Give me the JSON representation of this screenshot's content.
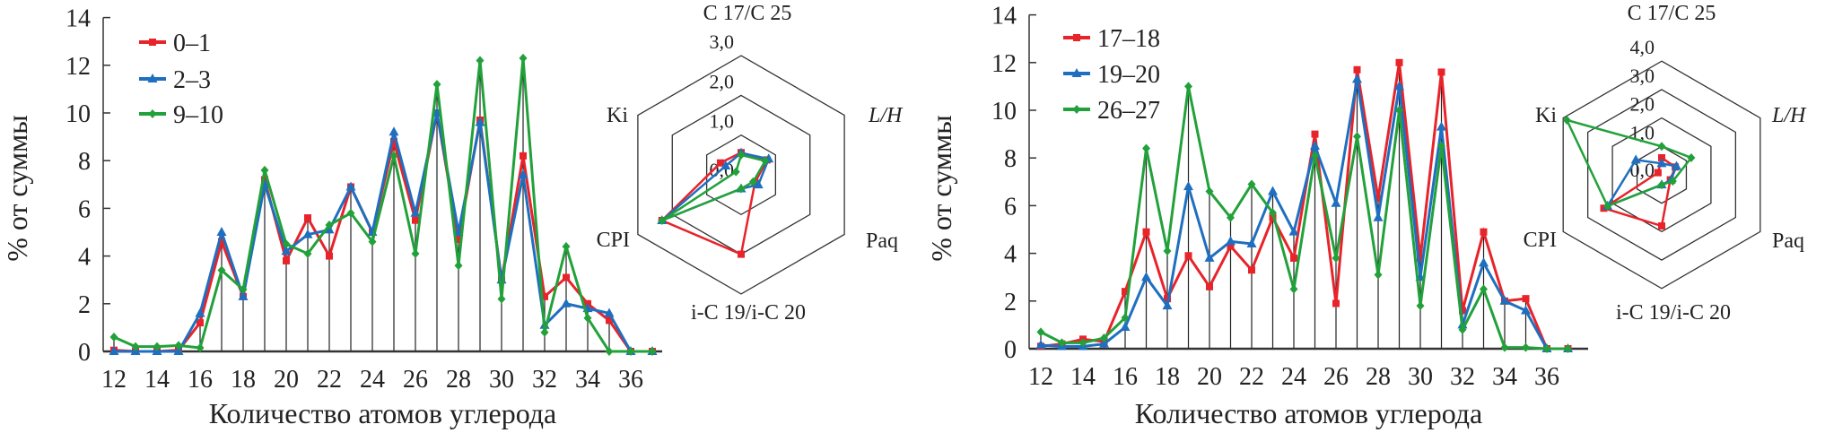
{
  "chart_data": [
    {
      "type": "line",
      "xlabel": "Количество атомов углерода",
      "ylabel": "% от суммы",
      "ylim": [
        0,
        14
      ],
      "yticks": [
        0,
        2,
        4,
        6,
        8,
        10,
        12,
        14
      ],
      "xticks": [
        12,
        14,
        16,
        18,
        20,
        22,
        24,
        26,
        28,
        30,
        32,
        34,
        36
      ],
      "x": [
        12,
        13,
        14,
        15,
        16,
        17,
        18,
        19,
        20,
        21,
        22,
        23,
        24,
        25,
        26,
        27,
        28,
        29,
        30,
        31,
        32,
        33,
        34,
        35,
        36,
        37
      ],
      "legend": "top-left",
      "series": [
        {
          "name": "0–1",
          "color": "#e8232a",
          "marker": "square",
          "values": [
            0.05,
            0,
            0,
            0.05,
            1.2,
            4.6,
            2.3,
            7.2,
            3.8,
            5.6,
            4.0,
            6.9,
            5.0,
            8.8,
            5.5,
            10.0,
            4.7,
            9.7,
            3.0,
            8.2,
            2.3,
            3.1,
            2.0,
            1.3,
            0,
            0
          ]
        },
        {
          "name": "2–3",
          "color": "#1f6fc0",
          "marker": "triangle",
          "values": [
            0,
            0,
            0,
            0,
            1.6,
            5.0,
            2.3,
            7.0,
            4.2,
            4.9,
            5.1,
            6.9,
            5.0,
            9.2,
            5.8,
            10.0,
            5.0,
            9.6,
            3.0,
            7.4,
            1.1,
            2.0,
            1.8,
            1.6,
            0,
            0
          ]
        },
        {
          "name": "9–10",
          "color": "#22a13a",
          "marker": "diamond",
          "values": [
            0.6,
            0.2,
            0.2,
            0.25,
            0.15,
            3.4,
            2.6,
            7.6,
            4.5,
            4.1,
            5.3,
            5.8,
            4.6,
            8.2,
            4.1,
            11.2,
            3.6,
            12.2,
            2.2,
            12.3,
            0.8,
            4.4,
            1.4,
            0,
            0,
            0
          ]
        }
      ],
      "radar": {
        "axes": [
          "C 17/C 25",
          "L/H",
          "Paq",
          "i-C 19/i-C 20",
          "CPI",
          "Ki"
        ],
        "rings": [
          "0,0",
          "1,0",
          "2,0",
          "3,0"
        ],
        "max": 3,
        "series": [
          {
            "name": "0–1",
            "values": [
              0.56,
              0.75,
              0.4,
              2.0,
              2.3,
              0.6
            ]
          },
          {
            "name": "2–3",
            "values": [
              0.55,
              0.8,
              0.5,
              0.35,
              2.3,
              0.45
            ]
          },
          {
            "name": "9–10",
            "values": [
              0.5,
              0.7,
              0.35,
              0.35,
              2.3,
              0.15
            ]
          }
        ]
      }
    },
    {
      "type": "line",
      "xlabel": "Количество атомов углерода",
      "ylabel": "% от суммы",
      "ylim": [
        0,
        14
      ],
      "yticks": [
        0,
        2,
        4,
        6,
        8,
        10,
        12,
        14
      ],
      "xticks": [
        12,
        14,
        16,
        18,
        20,
        22,
        24,
        26,
        28,
        30,
        32,
        34,
        36
      ],
      "x": [
        12,
        13,
        14,
        15,
        16,
        17,
        18,
        19,
        20,
        21,
        22,
        23,
        24,
        25,
        26,
        27,
        28,
        29,
        30,
        31,
        32,
        33,
        34,
        35,
        36,
        37
      ],
      "legend": "top-left",
      "series": [
        {
          "name": "17–18",
          "color": "#e8232a",
          "marker": "square",
          "values": [
            0.1,
            0.2,
            0.4,
            0.3,
            2.4,
            4.9,
            2.1,
            3.9,
            2.6,
            4.3,
            3.3,
            5.5,
            3.8,
            9.0,
            1.9,
            11.7,
            6.3,
            12.0,
            3.8,
            11.6,
            1.6,
            4.9,
            2.0,
            2.1,
            0,
            0
          ]
        },
        {
          "name": "19–20",
          "color": "#1f6fc0",
          "marker": "triangle",
          "values": [
            0.15,
            0.1,
            0.1,
            0.2,
            0.9,
            3.0,
            1.8,
            6.8,
            3.8,
            4.5,
            4.4,
            6.6,
            4.9,
            8.5,
            6.1,
            11.3,
            5.5,
            11.0,
            3.0,
            9.3,
            1.0,
            3.6,
            2.0,
            1.6,
            0,
            0
          ]
        },
        {
          "name": "26–27",
          "color": "#22a13a",
          "marker": "diamond",
          "values": [
            0.7,
            0.25,
            0.25,
            0.45,
            1.3,
            8.4,
            4.1,
            11.0,
            6.6,
            5.5,
            6.9,
            5.7,
            2.5,
            8.1,
            3.8,
            8.9,
            3.1,
            10.0,
            1.8,
            8.5,
            0.8,
            2.5,
            0.05,
            0.05,
            0,
            0
          ]
        }
      ],
      "radar": {
        "axes": [
          "C 17/C 25",
          "L/H",
          "Paq",
          "i-C 19/i-C 20",
          "CPI",
          "Ki"
        ],
        "rings": [
          "0,0",
          "1,0",
          "2,0",
          "3,0",
          "4,0"
        ],
        "max": 4,
        "series": [
          {
            "name": "17–18",
            "values": [
              0.6,
              0.55,
              0.35,
              1.8,
              2.35,
              0.15
            ]
          },
          {
            "name": "19–20",
            "values": [
              0.4,
              0.6,
              0.37,
              0.35,
              2.2,
              1.05
            ]
          },
          {
            "name": "26–27",
            "values": [
              1.0,
              1.2,
              0.45,
              0.35,
              2.2,
              3.85
            ]
          }
        ]
      }
    }
  ]
}
